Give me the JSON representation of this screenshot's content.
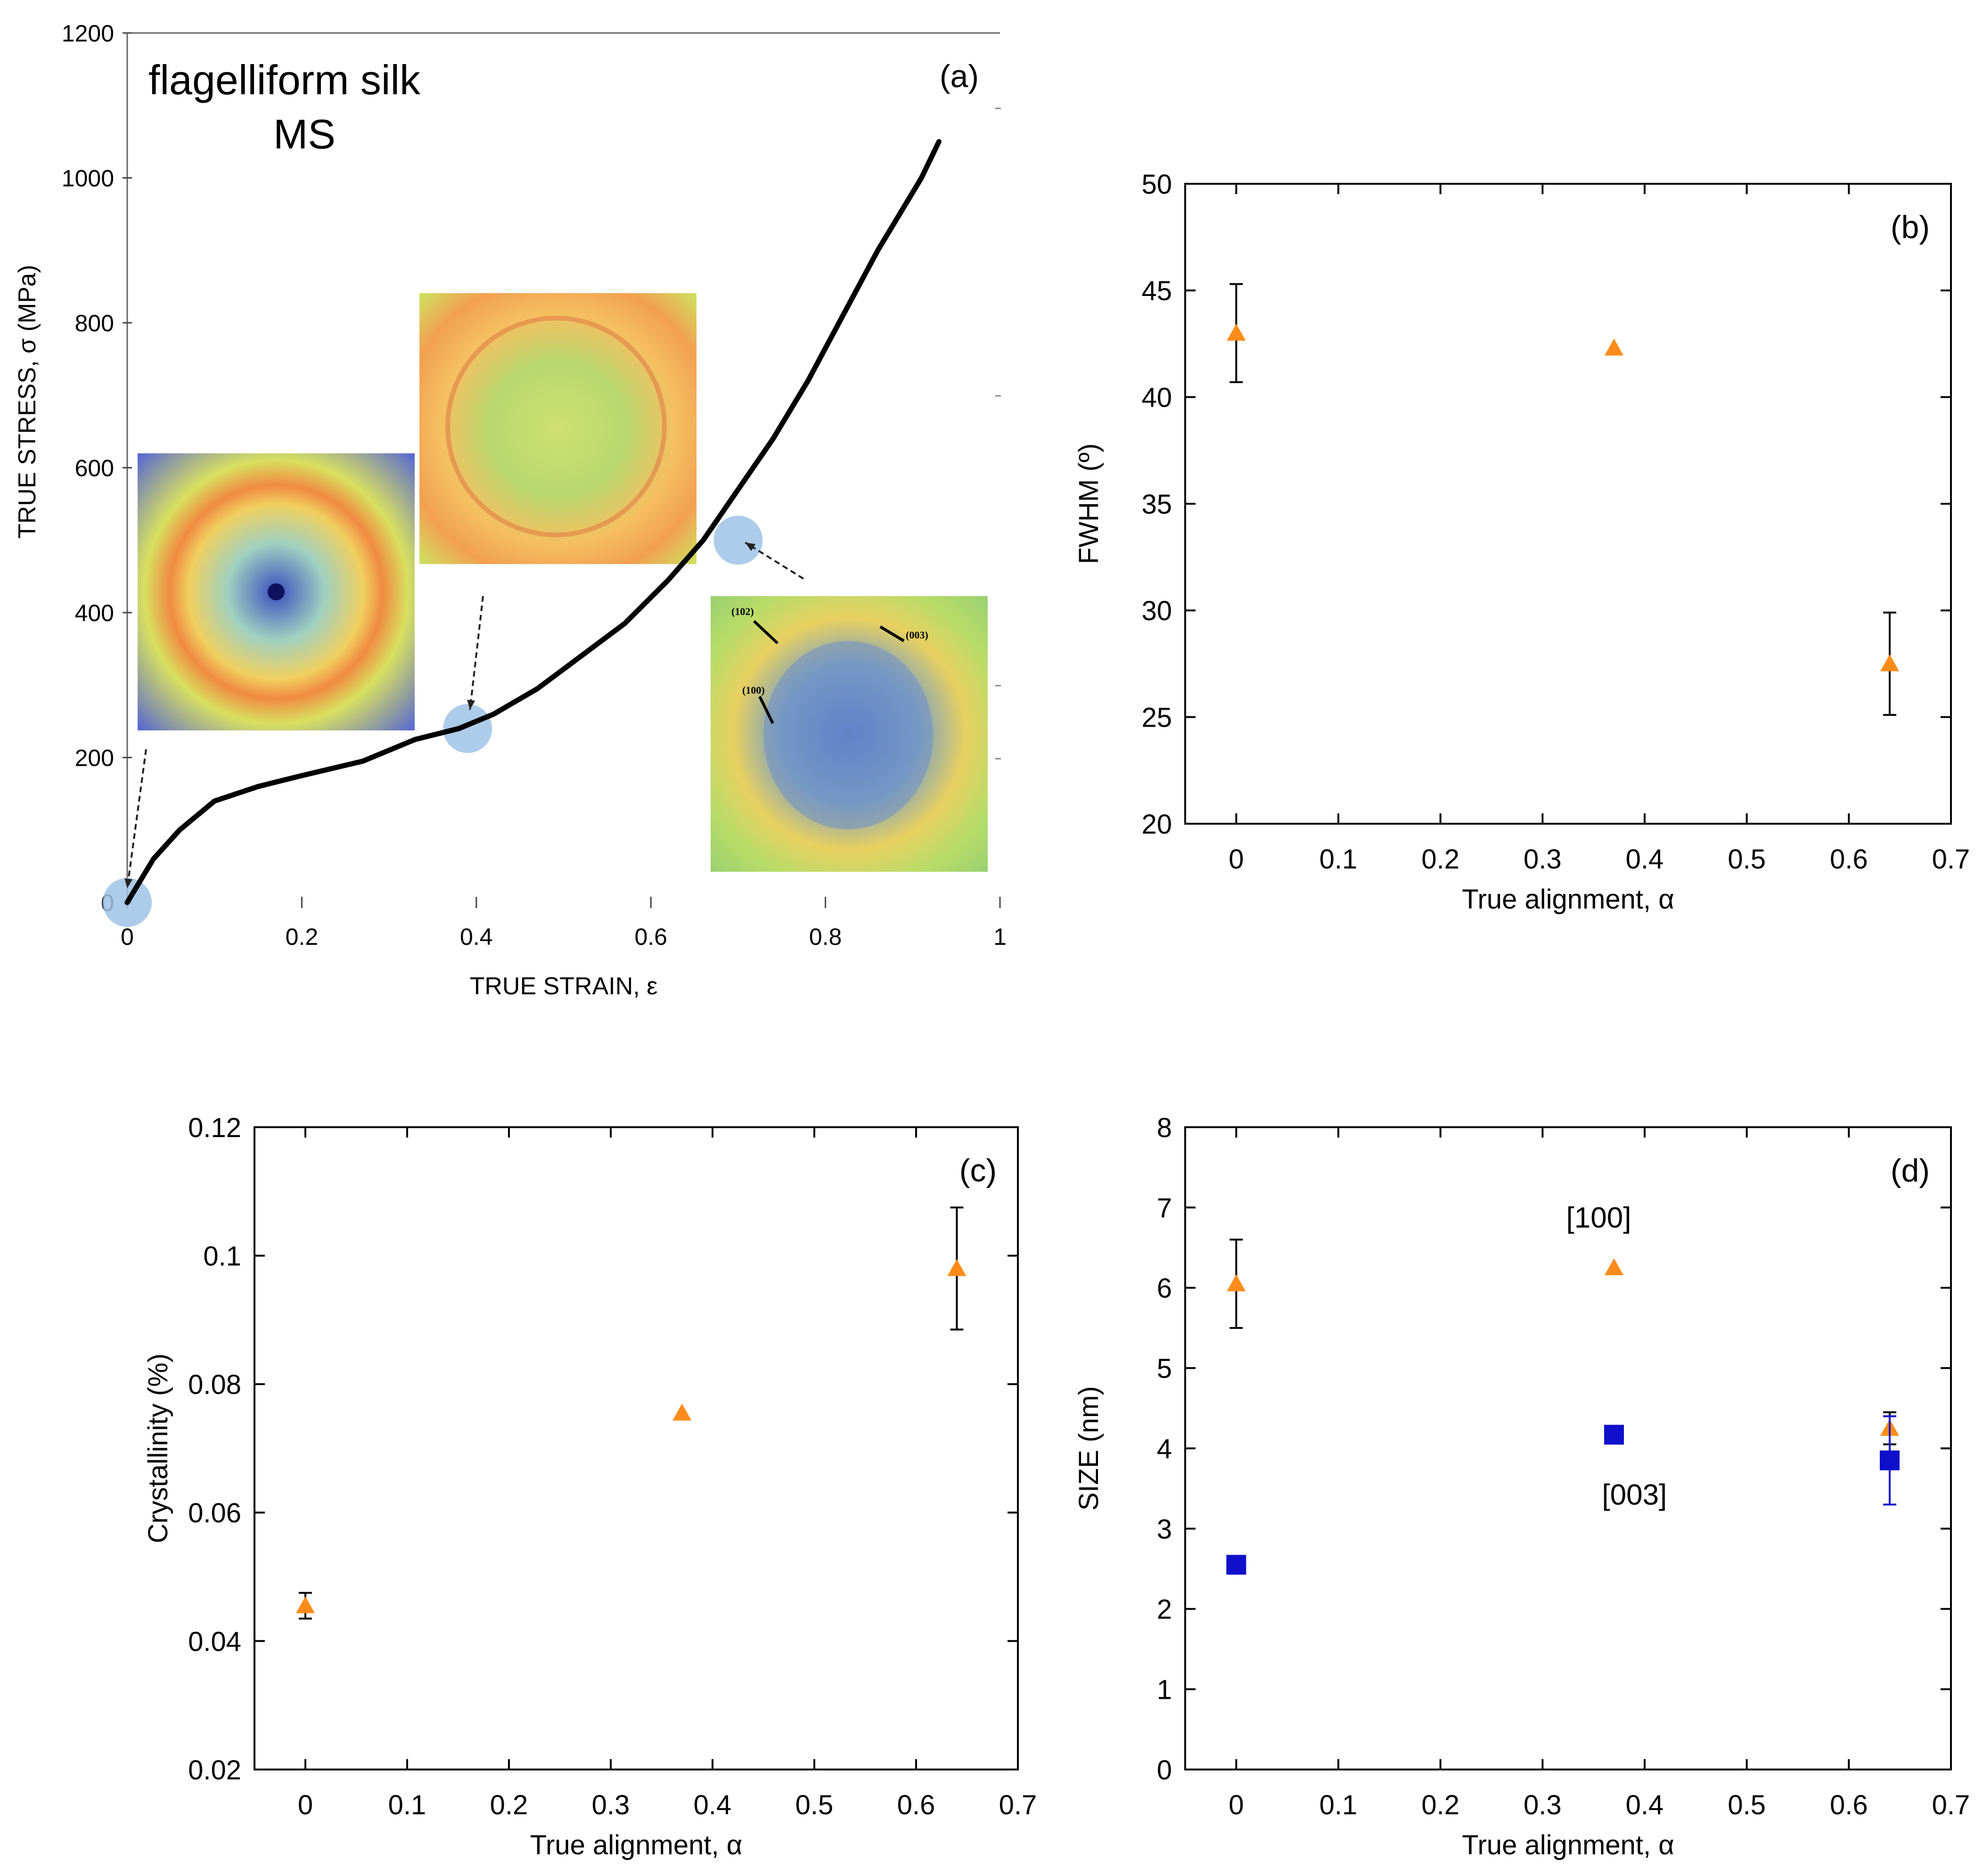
{
  "colors": {
    "orange": "#ff8c1a",
    "blue": "#1010cc",
    "axis": "#000000",
    "highlight": "#9fc3e6"
  },
  "chart_data": [
    {
      "id": "a",
      "type": "line",
      "panel_label": "(a)",
      "title": "flagelliform silk",
      "subtitle": "MS",
      "xlabel": "TRUE STRAIN, ε",
      "ylabel": "TRUE STRESS, σ (MPa)",
      "xlim": [
        0,
        1
      ],
      "ylim": [
        0,
        1200
      ],
      "xticks": [
        0,
        0.2,
        0.4,
        0.6,
        0.8,
        1
      ],
      "xtick_labels": [
        "0",
        "0.2",
        "0.4",
        "0.6",
        "0.8",
        "1"
      ],
      "yticks": [
        0,
        200,
        400,
        600,
        800,
        1000,
        1200
      ],
      "ytick_labels": [
        "0",
        "200",
        "400",
        "600",
        "800",
        "1000",
        "1200"
      ],
      "series": [
        {
          "name": "stress-strain",
          "x": [
            0,
            0.03,
            0.06,
            0.1,
            0.15,
            0.2,
            0.27,
            0.33,
            0.38,
            0.42,
            0.47,
            0.52,
            0.57,
            0.62,
            0.66,
            0.7,
            0.74,
            0.78,
            0.82,
            0.86,
            0.89,
            0.91,
            0.93
          ],
          "y": [
            0,
            60,
            100,
            140,
            160,
            175,
            195,
            225,
            240,
            260,
            295,
            340,
            385,
            445,
            500,
            570,
            640,
            720,
            810,
            900,
            960,
            1000,
            1050
          ]
        }
      ],
      "markers": [
        {
          "x": 0,
          "y": 0
        },
        {
          "x": 0.39,
          "y": 240
        },
        {
          "x": 0.7,
          "y": 500
        }
      ],
      "inset_labels": [
        "(102)",
        "(003)",
        "(100)"
      ]
    },
    {
      "id": "b",
      "type": "scatter",
      "panel_label": "(b)",
      "xlabel": "True alignment,  α",
      "ylabel": "FWHM (º)",
      "xlim": [
        -0.05,
        0.7
      ],
      "ylim": [
        20,
        50
      ],
      "xticks": [
        0,
        0.1,
        0.2,
        0.3,
        0.4,
        0.5,
        0.6,
        0.7
      ],
      "xtick_labels": [
        "0",
        "0.1",
        "0.2",
        "0.3",
        "0.4",
        "0.5",
        "0.6",
        "0.7"
      ],
      "yticks": [
        20,
        25,
        30,
        35,
        40,
        45,
        50
      ],
      "ytick_labels": [
        "20",
        "25",
        "30",
        "35",
        "40",
        "45",
        "50"
      ],
      "series": [
        {
          "name": "FWHM",
          "marker": "triangle",
          "color": "#ff8c1a",
          "x": [
            0,
            0.37,
            0.64
          ],
          "y": [
            43.0,
            42.3,
            27.5
          ],
          "err": [
            2.3,
            0,
            2.4
          ]
        }
      ]
    },
    {
      "id": "c",
      "type": "scatter",
      "panel_label": "(c)",
      "xlabel": "True alignment,  α",
      "ylabel": "Crystallinity (%)",
      "xlim": [
        -0.05,
        0.7
      ],
      "ylim": [
        0.02,
        0.12
      ],
      "xticks": [
        0,
        0.1,
        0.2,
        0.3,
        0.4,
        0.5,
        0.6,
        0.7
      ],
      "xtick_labels": [
        "0",
        "0.1",
        "0.2",
        "0.3",
        "0.4",
        "0.5",
        "0.6",
        "0.7"
      ],
      "yticks": [
        0.02,
        0.04,
        0.06,
        0.08,
        0.1,
        0.12
      ],
      "ytick_labels": [
        "0.02",
        "0.04",
        "0.06",
        "0.08",
        "0.1",
        "0.12"
      ],
      "series": [
        {
          "name": "Crystallinity",
          "marker": "triangle",
          "color": "#ff8c1a",
          "x": [
            0,
            0.37,
            0.64
          ],
          "y": [
            0.0455,
            0.0755,
            0.098
          ],
          "err": [
            0.002,
            0,
            0.0095
          ]
        }
      ]
    },
    {
      "id": "d",
      "type": "scatter",
      "panel_label": "(d)",
      "xlabel": "True alignment,  α",
      "ylabel": "SIZE (nm)",
      "xlim": [
        -0.05,
        0.7
      ],
      "ylim": [
        0,
        8
      ],
      "xticks": [
        0,
        0.1,
        0.2,
        0.3,
        0.4,
        0.5,
        0.6,
        0.7
      ],
      "xtick_labels": [
        "0",
        "0.1",
        "0.2",
        "0.3",
        "0.4",
        "0.5",
        "0.6",
        "0.7"
      ],
      "yticks": [
        0,
        1,
        2,
        3,
        4,
        5,
        6,
        7,
        8
      ],
      "ytick_labels": [
        "0",
        "1",
        "2",
        "3",
        "4",
        "5",
        "6",
        "7",
        "8"
      ],
      "series": [
        {
          "name": "[100]",
          "marker": "triangle",
          "color": "#ff8c1a",
          "x": [
            0,
            0.37,
            0.64
          ],
          "y": [
            6.05,
            6.25,
            4.25
          ],
          "err": [
            0.55,
            0,
            0.2
          ]
        },
        {
          "name": "[003]",
          "marker": "square",
          "color": "#1010cc",
          "x": [
            0,
            0.37,
            0.64
          ],
          "y": [
            2.55,
            4.17,
            3.85
          ],
          "err": [
            0,
            0,
            0.55
          ]
        }
      ],
      "annotations": [
        {
          "text": "[100]",
          "x": 0.355,
          "y": 6.75
        },
        {
          "text": "[003]",
          "x": 0.39,
          "y": 3.3
        }
      ]
    }
  ]
}
